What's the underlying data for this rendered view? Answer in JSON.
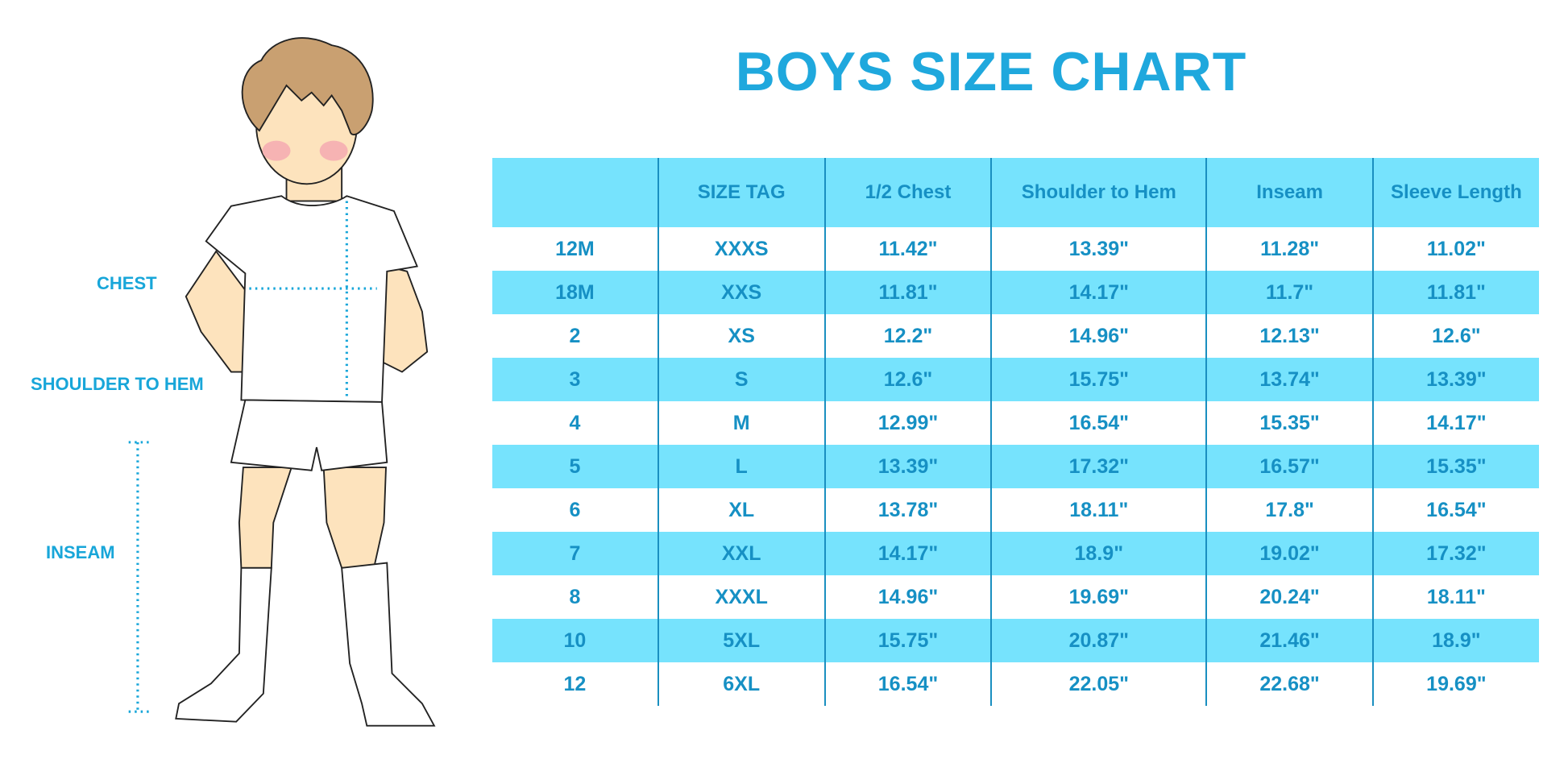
{
  "title": "BOYS SIZE CHART",
  "figure_labels": {
    "chest": "CHEST",
    "shoulder_to_hem": "SHOULDER TO HEM",
    "inseam": "INSEAM"
  },
  "colors": {
    "title": "#1fa8dd",
    "header_bg": "#76e3fd",
    "stripe_bg": "#76e3fd",
    "text": "#1690c4",
    "measure_line": "#18a6d9"
  },
  "table": {
    "headers": [
      "",
      "SIZE TAG",
      "1/2 Chest",
      "Shoulder to Hem",
      "Inseam",
      "Sleeve Length"
    ],
    "rows": [
      [
        "12M",
        "XXXS",
        "11.42\"",
        "13.39\"",
        "11.28\"",
        "11.02\""
      ],
      [
        "18M",
        "XXS",
        "11.81\"",
        "14.17\"",
        "11.7\"",
        "11.81\""
      ],
      [
        "2",
        "XS",
        "12.2\"",
        "14.96\"",
        "12.13\"",
        "12.6\""
      ],
      [
        "3",
        "S",
        "12.6\"",
        "15.75\"",
        "13.74\"",
        "13.39\""
      ],
      [
        "4",
        "M",
        "12.99\"",
        "16.54\"",
        "15.35\"",
        "14.17\""
      ],
      [
        "5",
        "L",
        "13.39\"",
        "17.32\"",
        "16.57\"",
        "15.35\""
      ],
      [
        "6",
        "XL",
        "13.78\"",
        "18.11\"",
        "17.8\"",
        "16.54\""
      ],
      [
        "7",
        "XXL",
        "14.17\"",
        "18.9\"",
        "19.02\"",
        "17.32\""
      ],
      [
        "8",
        "XXXL",
        "14.96\"",
        "19.69\"",
        "20.24\"",
        "18.11\""
      ],
      [
        "10",
        "5XL",
        "15.75\"",
        "20.87\"",
        "21.46\"",
        "18.9\""
      ],
      [
        "12",
        "6XL",
        "16.54\"",
        "22.05\"",
        "22.68\"",
        "19.69\""
      ]
    ]
  }
}
